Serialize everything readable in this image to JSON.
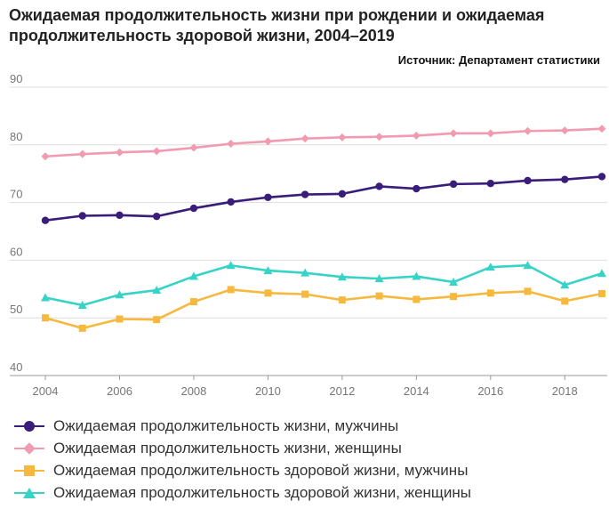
{
  "title": "Ожидаемая продолжительность жизни при рождении и ожидаемая продолжительность здоровой жизни, 2004–2019",
  "source": "Источник: Департамент статистики",
  "chart_data": {
    "type": "line",
    "x": [
      2004,
      2005,
      2006,
      2007,
      2008,
      2009,
      2010,
      2011,
      2012,
      2013,
      2014,
      2015,
      2016,
      2017,
      2018,
      2019
    ],
    "xticks": [
      "2004",
      "2006",
      "2008",
      "2010",
      "2012",
      "2014",
      "2016",
      "2018"
    ],
    "xlim": [
      2004,
      2019
    ],
    "ylim": [
      40,
      90
    ],
    "yticks": [
      "40",
      "50",
      "60",
      "70",
      "80",
      "90"
    ],
    "grid": true,
    "legend_position": "bottom-left",
    "series": [
      {
        "name": "Ожидаемая продолжительность жизни, мужчины",
        "color": "#3a1c7a",
        "marker": "circle",
        "values": [
          66.9,
          67.7,
          67.8,
          67.6,
          69.0,
          70.1,
          70.9,
          71.4,
          71.5,
          72.8,
          72.4,
          73.2,
          73.3,
          73.8,
          74.0,
          74.5
        ]
      },
      {
        "name": "Ожидаемая продолжительность жизни, женщины",
        "color": "#f29ab0",
        "marker": "diamond",
        "values": [
          78.0,
          78.4,
          78.7,
          78.9,
          79.5,
          80.2,
          80.6,
          81.1,
          81.3,
          81.4,
          81.6,
          82.0,
          82.0,
          82.4,
          82.5,
          82.8
        ]
      },
      {
        "name": "Ожидаемая продолжительность здоровой жизни, мужчины",
        "color": "#f6b93e",
        "marker": "square",
        "values": [
          50.0,
          48.2,
          49.8,
          49.7,
          52.8,
          54.9,
          54.3,
          54.1,
          53.1,
          53.8,
          53.2,
          53.7,
          54.3,
          54.6,
          52.9,
          54.2
        ]
      },
      {
        "name": "Ожидаемая продолжительность здоровой жизни, женщины",
        "color": "#37d3c6",
        "marker": "triangle",
        "values": [
          53.5,
          52.2,
          54.0,
          54.8,
          57.2,
          59.1,
          58.2,
          57.8,
          57.1,
          56.8,
          57.2,
          56.2,
          58.8,
          59.1,
          55.7,
          57.7
        ]
      }
    ]
  }
}
